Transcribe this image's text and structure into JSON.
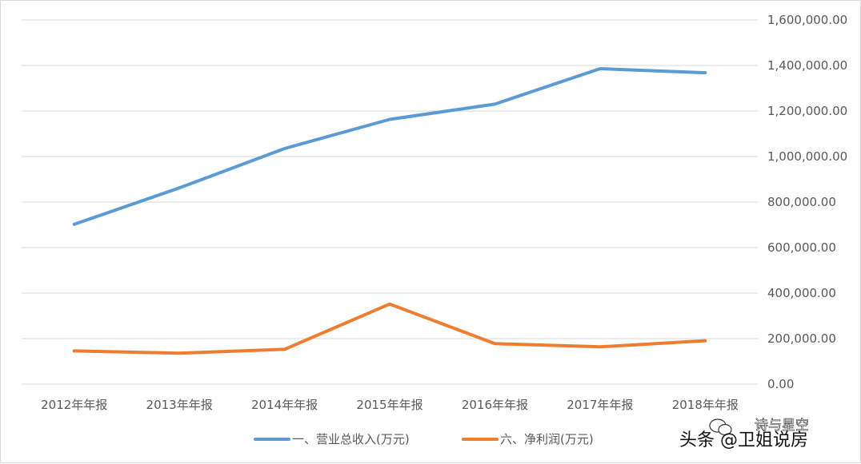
{
  "chart_data": {
    "type": "line",
    "categories": [
      "2012年年报",
      "2013年年报",
      "2014年年报",
      "2015年年报",
      "2016年年报",
      "2017年年报",
      "2018年年报"
    ],
    "series": [
      {
        "name": "一、营业总收入(万元)",
        "color": "#5b9bd5",
        "values": [
          702000,
          862000,
          1035000,
          1163000,
          1230000,
          1386000,
          1368000
        ]
      },
      {
        "name": "六、净利润(万元)",
        "color": "#ed7d31",
        "values": [
          146000,
          136000,
          153000,
          352000,
          178000,
          164000,
          191000
        ]
      }
    ],
    "y_ticks": [
      "0.00",
      "200,000.00",
      "400,000.00",
      "600,000.00",
      "800,000.00",
      "1,000,000.00",
      "1,200,000.00",
      "1,400,000.00",
      "1,600,000.00"
    ],
    "ylim": [
      0,
      1600000
    ],
    "y_axis_side": "right",
    "grid": true,
    "legend_position": "bottom",
    "title": "",
    "xlabel": "",
    "ylabel": ""
  },
  "watermark": {
    "small_text": "诗与星空",
    "main_text": "头条 @卫姐说房"
  }
}
